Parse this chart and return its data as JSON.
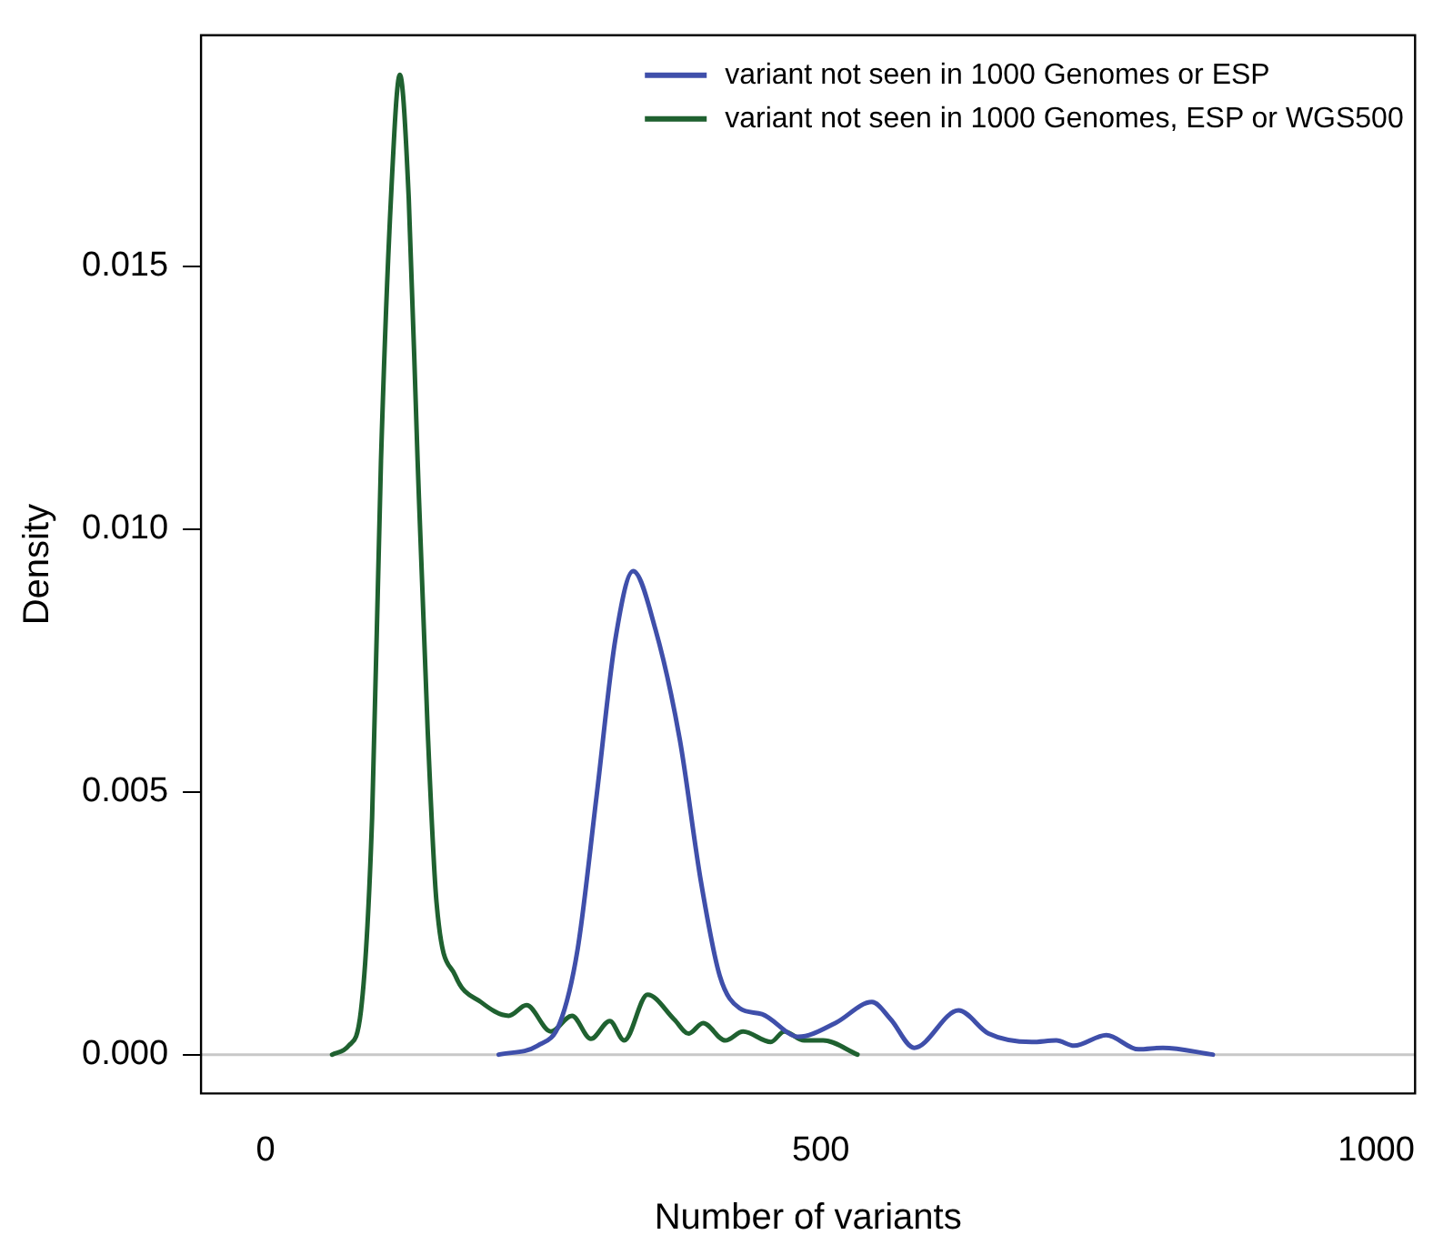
{
  "chart_data": {
    "type": "line",
    "xlabel": "Number of variants",
    "ylabel": "Density",
    "xlim": [
      -58,
      1035
    ],
    "ylim": [
      -0.00074,
      0.0194
    ],
    "xticks": [
      0,
      500,
      1000
    ],
    "yticks": [
      {
        "value": 0,
        "label": "0.000"
      },
      {
        "value": 0.005,
        "label": "0.005"
      },
      {
        "value": 0.01,
        "label": "0.010"
      },
      {
        "value": 0.015,
        "label": "0.015"
      }
    ],
    "grid": false,
    "legend": "top right",
    "marker": "none",
    "line_style": "solid",
    "ref_lines": [
      {
        "axis": "y",
        "value": 0,
        "color": "#c8c8c8"
      }
    ],
    "series": [
      {
        "name": "variant not seen in 1000 Genomes or ESP",
        "color": "#3f4faa",
        "x": [
          210,
          245,
          265,
          281,
          298,
          315,
          331,
          351,
          373,
          392,
          409,
          427,
          447,
          480,
          513,
          546,
          563,
          584,
          624,
          651,
          690,
          712,
          728,
          757,
          786,
          808,
          853
        ],
        "values": [
          0,
          0.00017,
          0.0006,
          0.002,
          0.0049,
          0.0079,
          0.0092,
          0.0081,
          0.006,
          0.0033,
          0.0015,
          0.00088,
          0.00077,
          0.00034,
          0.0006,
          0.001,
          0.00067,
          0.00013,
          0.00084,
          0.0004,
          0.00024,
          0.00027,
          0.00017,
          0.00037,
          0.0001,
          0.00013,
          0
        ]
      },
      {
        "name": "variant not seen in 1000 Genomes, ESP or WGS500",
        "color": "#1f6130",
        "x": [
          60,
          75,
          86,
          96,
          104,
          113,
          121,
          129,
          137,
          146,
          154,
          171,
          194,
          219,
          235,
          257,
          276,
          293,
          310,
          323,
          344,
          368,
          381,
          394,
          414,
          430,
          455,
          467,
          485,
          502,
          533
        ],
        "values": [
          0,
          0.00017,
          0.00084,
          0.0045,
          0.0113,
          0.0163,
          0.01865,
          0.0163,
          0.0113,
          0.0062,
          0.0029,
          0.0015,
          0.001,
          0.00074,
          0.00094,
          0.00044,
          0.00074,
          0.0003,
          0.00064,
          0.00027,
          0.00114,
          0.00067,
          0.0004,
          0.0006,
          0.00027,
          0.00044,
          0.00024,
          0.00044,
          0.00027,
          0.00027,
          0
        ]
      }
    ]
  }
}
